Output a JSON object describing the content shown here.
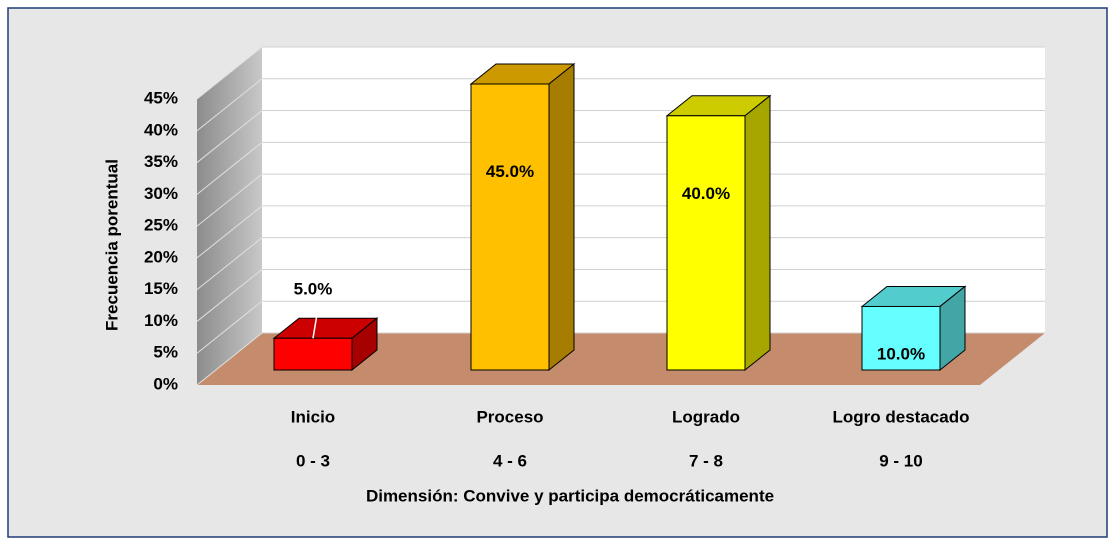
{
  "chart_data": {
    "type": "bar3d",
    "y_axis_label": "Frecuencia porentual",
    "x_axis_label": "Dimensión: Convive y participa democráticamente",
    "categories": [
      "Inicio",
      "Proceso",
      "Logrado",
      "Logro destacado"
    ],
    "category_ranges": [
      "0 - 3",
      "4 - 6",
      "7 - 8",
      "9 - 10"
    ],
    "values": [
      5,
      45,
      40,
      10
    ],
    "value_labels": [
      "5.0%",
      "45.0%",
      "40.0%",
      "10.0%"
    ],
    "colors": [
      "#ff0000",
      "#ffc000",
      "#ffff00",
      "#66ffff"
    ],
    "ylim": [
      0,
      45
    ],
    "yticks": [
      {
        "value": 0,
        "label": "0%"
      },
      {
        "value": 5,
        "label": "5%"
      },
      {
        "value": 10,
        "label": "10%"
      },
      {
        "value": 15,
        "label": "15%"
      },
      {
        "value": 20,
        "label": "20%"
      },
      {
        "value": 25,
        "label": "25%"
      },
      {
        "value": 30,
        "label": "30%"
      },
      {
        "value": 35,
        "label": "35%"
      },
      {
        "value": 40,
        "label": "40%"
      },
      {
        "value": 45,
        "label": "45%"
      }
    ],
    "grid": true
  }
}
